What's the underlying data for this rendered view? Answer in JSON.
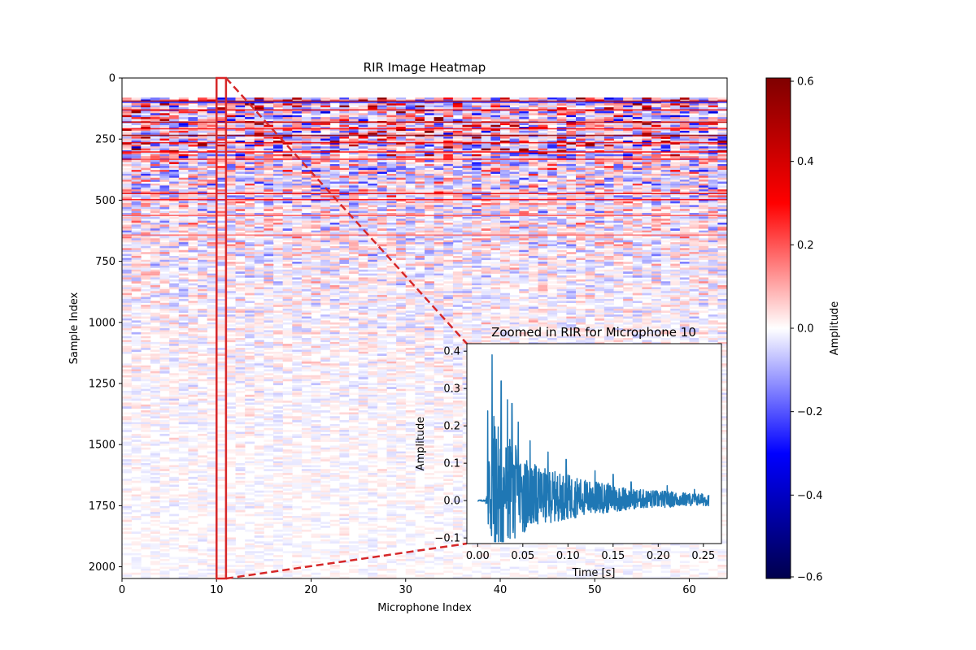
{
  "chart_data": [
    {
      "type": "heatmap",
      "title": "RIR Image Heatmap",
      "xlabel": "Microphone Index",
      "ylabel": "Sample Index",
      "xlim": [
        0,
        64
      ],
      "ylim": [
        2048,
        0
      ],
      "xticks": [
        0,
        10,
        20,
        30,
        40,
        50,
        60
      ],
      "yticks": [
        0,
        250,
        500,
        750,
        1000,
        1250,
        1500,
        1750,
        2000
      ],
      "highlight": {
        "microphone": 10,
        "x_range": [
          10,
          11
        ],
        "color": "#d62728"
      },
      "colorbar": {
        "label": "Amplitude",
        "range": [
          -0.6,
          0.6
        ],
        "ticks": [
          0.6,
          0.4,
          0.2,
          0.0,
          -0.2,
          -0.4,
          -0.6
        ],
        "tick_labels": [
          "0.6",
          "0.4",
          "0.2",
          "0.0",
          "−0.2",
          "−0.4",
          "−0.6"
        ],
        "colormap": "seismic"
      },
      "description_of_values": "Room impulse response amplitudes per microphone (64) over 2048 samples; strong early reflections near samples 90-300 decaying with sample index"
    },
    {
      "type": "line",
      "title": "Zoomed in RIR for Microphone 10",
      "xlabel": "Time [s]",
      "ylabel": "Amplitude",
      "xlim": [
        -0.012,
        0.27
      ],
      "ylim": [
        -0.115,
        0.42
      ],
      "xticks": [
        0.0,
        0.05,
        0.1,
        0.15,
        0.2,
        0.25
      ],
      "xtick_labels": [
        "0.00",
        "0.05",
        "0.10",
        "0.15",
        "0.20",
        "0.25"
      ],
      "yticks": [
        -0.1,
        0.0,
        0.1,
        0.2,
        0.3,
        0.4
      ],
      "ytick_labels": [
        "−0.1",
        "0.0",
        "0.1",
        "0.2",
        "0.3",
        "0.4"
      ],
      "series": [
        {
          "name": "Microphone 10",
          "color": "#1f77b4",
          "peaks": [
            {
              "t": 0.011,
              "v": 0.24
            },
            {
              "t": 0.016,
              "v": 0.39
            },
            {
              "t": 0.026,
              "v": 0.32
            },
            {
              "t": 0.033,
              "v": 0.27
            },
            {
              "t": 0.038,
              "v": 0.26
            },
            {
              "t": 0.045,
              "v": 0.21
            },
            {
              "t": 0.058,
              "v": 0.16
            },
            {
              "t": 0.078,
              "v": 0.13
            },
            {
              "t": 0.098,
              "v": 0.11
            },
            {
              "t": 0.13,
              "v": 0.08
            },
            {
              "t": 0.15,
              "v": 0.07
            },
            {
              "t": 0.17,
              "v": 0.05
            },
            {
              "t": 0.21,
              "v": 0.04
            },
            {
              "t": 0.24,
              "v": 0.03
            }
          ],
          "duration_s": 0.256,
          "minimum": -0.11
        }
      ]
    }
  ]
}
